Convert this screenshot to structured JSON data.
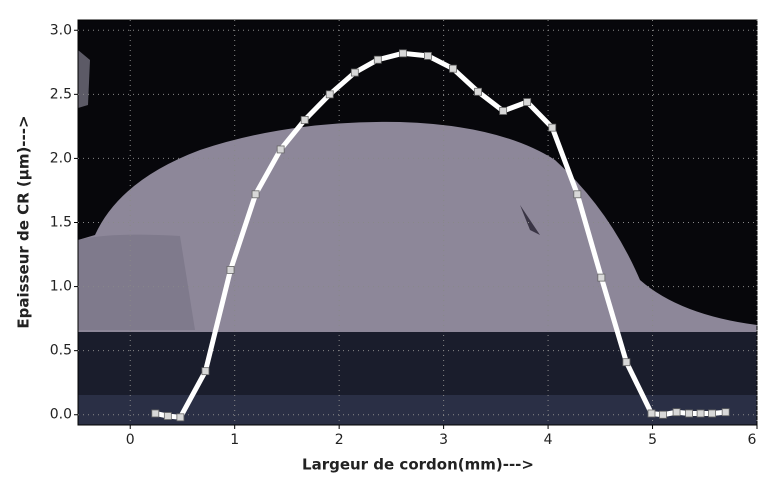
{
  "chart_data": {
    "type": "line",
    "xlabel": "Largeur de cordon(mm)--->",
    "ylabel": "Epaisseur de CR (μm)--->",
    "x": [
      0.24,
      0.36,
      0.48,
      0.72,
      0.96,
      1.2,
      1.44,
      1.67,
      1.91,
      2.15,
      2.37,
      2.61,
      2.85,
      3.09,
      3.33,
      3.57,
      3.8,
      4.04,
      4.28,
      4.51,
      4.75,
      4.99,
      5.1,
      5.23,
      5.35,
      5.46,
      5.57,
      5.7
    ],
    "values": [
      0.01,
      -0.01,
      -0.02,
      0.34,
      1.13,
      1.72,
      2.07,
      2.3,
      2.5,
      2.67,
      2.77,
      2.82,
      2.8,
      2.7,
      2.52,
      2.37,
      2.44,
      2.24,
      1.72,
      1.07,
      0.41,
      0.01,
      0.0,
      0.02,
      0.01,
      0.01,
      0.01,
      0.02
    ],
    "color": "#ffffff",
    "xlim": [
      -0.5,
      6
    ],
    "ylim": [
      -0.08,
      3.08
    ],
    "xticks": [
      0,
      1,
      2,
      3,
      4,
      5,
      6
    ],
    "yticks": [
      {
        "value": 0,
        "label": "0.0"
      },
      0.5,
      {
        "value": 1,
        "label": "1.0"
      },
      1.5,
      {
        "value": 2,
        "label": "2.0"
      },
      2.5,
      {
        "value": 3,
        "label": "3.0"
      }
    ],
    "grid": true
  }
}
